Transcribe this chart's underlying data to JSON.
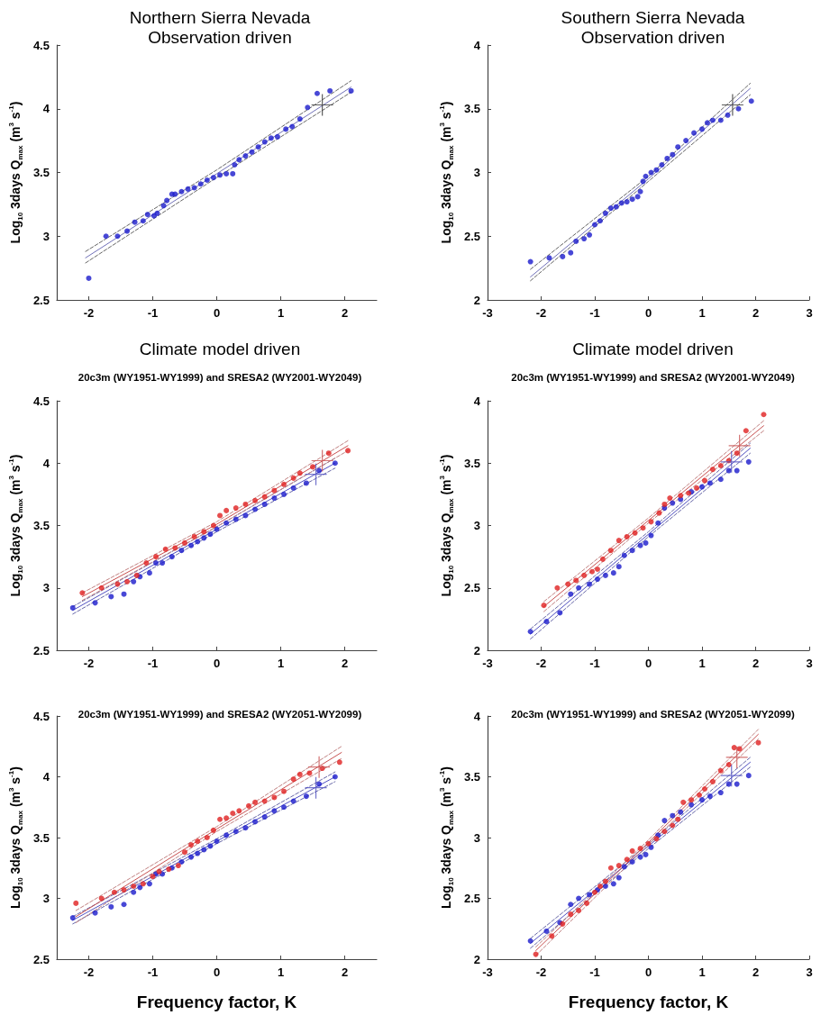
{
  "chart_data": [
    {
      "type": "scatter",
      "title": "Northern Sierra Nevada",
      "subtitle": "Observation driven",
      "ylabel": "Log$_{10}$ 3days Q$_{max}$ (m$^{3}$ s$^{-1}$)",
      "xlim": [
        -2.5,
        2.5
      ],
      "ylim": [
        2.5,
        4.5
      ],
      "xticks": [
        -2,
        -1,
        0,
        1,
        2
      ],
      "yticks": [
        2.5,
        3,
        3.5,
        4,
        4.5
      ],
      "series": [
        {
          "type": "line",
          "color": "#666666",
          "line_style": "dashed",
          "marker": "none",
          "x": [
            -2.05,
            0,
            2.1
          ],
          "values": [
            2.88,
            3.52,
            4.22
          ]
        },
        {
          "type": "line",
          "color": "#666666",
          "line_style": "dashed",
          "marker": "none",
          "x": [
            -2.05,
            0,
            2.1
          ],
          "values": [
            2.79,
            3.46,
            4.13
          ]
        },
        {
          "type": "line",
          "color": "#7070b8",
          "line_style": "solid",
          "marker": "none",
          "x": [
            -2.05,
            0,
            2.1
          ],
          "values": [
            2.83,
            3.49,
            4.17
          ]
        },
        {
          "color": "#1a1acc",
          "marker": "circle",
          "x": [
            -2,
            -1.73,
            -1.55,
            -1.4,
            -1.28,
            -1.15,
            -1.08,
            -0.98,
            -0.93,
            -0.83,
            -0.78,
            -0.7,
            -0.65,
            -0.55,
            -0.45,
            -0.35,
            -0.25,
            -0.15,
            -0.05,
            0.05,
            0.15,
            0.25,
            0.28,
            0.35,
            0.45,
            0.55,
            0.65,
            0.75,
            0.85,
            0.95,
            1.08,
            1.18,
            1.3,
            1.42,
            1.57,
            1.77,
            2.1
          ],
          "values": [
            2.67,
            3.0,
            3.0,
            3.04,
            3.11,
            3.12,
            3.17,
            3.16,
            3.18,
            3.24,
            3.28,
            3.33,
            3.33,
            3.35,
            3.37,
            3.38,
            3.41,
            3.44,
            3.46,
            3.48,
            3.49,
            3.49,
            3.56,
            3.6,
            3.63,
            3.66,
            3.7,
            3.74,
            3.77,
            3.78,
            3.84,
            3.86,
            3.92,
            4.01,
            4.12,
            4.14,
            4.14
          ]
        },
        {
          "color": "#333333",
          "marker": "cross",
          "x": [
            1.65
          ],
          "values": [
            4.03
          ]
        }
      ]
    },
    {
      "type": "scatter",
      "title": "Southern Sierra Nevada",
      "subtitle": "Observation driven",
      "ylabel": "Log$_{10}$ 3days Q$_{max}$ (m$^{3}$ s$^{-1}$)",
      "xlim": [
        -3,
        3
      ],
      "ylim": [
        2,
        4
      ],
      "xticks": [
        -3,
        -2,
        -1,
        0,
        1,
        2,
        3
      ],
      "yticks": [
        2,
        2.5,
        3,
        3.5,
        4
      ],
      "series": [
        {
          "type": "line",
          "color": "#666666",
          "line_style": "dashed",
          "marker": "none",
          "x": [
            -2.2,
            0,
            1.9
          ],
          "values": [
            2.24,
            2.97,
            3.7
          ]
        },
        {
          "type": "line",
          "color": "#666666",
          "line_style": "dashed",
          "marker": "none",
          "x": [
            -2.2,
            0,
            1.9
          ],
          "values": [
            2.15,
            2.93,
            3.61
          ]
        },
        {
          "type": "line",
          "color": "#7070b8",
          "line_style": "solid",
          "marker": "none",
          "x": [
            -2.2,
            0,
            1.9
          ],
          "values": [
            2.18,
            2.95,
            3.66
          ]
        },
        {
          "color": "#1a1acc",
          "marker": "circle",
          "x": [
            -2.2,
            -1.85,
            -1.6,
            -1.45,
            -1.35,
            -1.2,
            -1.1,
            -1.0,
            -0.9,
            -0.8,
            -0.7,
            -0.6,
            -0.5,
            -0.4,
            -0.3,
            -0.2,
            -0.15,
            -0.1,
            -0.05,
            0.05,
            0.15,
            0.25,
            0.35,
            0.45,
            0.55,
            0.7,
            0.85,
            1.0,
            1.1,
            1.2,
            1.35,
            1.48,
            1.68,
            1.92
          ],
          "values": [
            2.3,
            2.33,
            2.34,
            2.37,
            2.46,
            2.48,
            2.51,
            2.59,
            2.62,
            2.68,
            2.72,
            2.73,
            2.76,
            2.77,
            2.79,
            2.81,
            2.85,
            2.93,
            2.97,
            3.0,
            3.02,
            3.06,
            3.11,
            3.14,
            3.2,
            3.25,
            3.31,
            3.34,
            3.39,
            3.41,
            3.41,
            3.45,
            3.5,
            3.56
          ]
        },
        {
          "color": "#333333",
          "marker": "cross",
          "x": [
            1.57
          ],
          "values": [
            3.53
          ]
        }
      ]
    },
    {
      "type": "scatter",
      "title": "Climate model driven",
      "subtitle": "20c3m (WY1951-WY1999) and SRESA2 (WY2001-WY2049)",
      "ylabel": "Log$_{10}$ 3days Q$_{max}$ (m$^{3}$ s$^{-1}$)",
      "xlim": [
        -2.5,
        2.5
      ],
      "ylim": [
        2.5,
        4.5
      ],
      "xticks": [
        -2,
        -1,
        0,
        1,
        2
      ],
      "yticks": [
        2.5,
        3,
        3.5,
        4,
        4.5
      ],
      "series": [
        {
          "type": "line",
          "color": "#6868a8",
          "line_style": "dashed",
          "marker": "none",
          "x": [
            -2.25,
            0,
            1.85
          ],
          "values": [
            2.85,
            3.49,
            4.04
          ]
        },
        {
          "type": "line",
          "color": "#6868a8",
          "line_style": "dashed",
          "marker": "none",
          "x": [
            -2.25,
            0,
            1.85
          ],
          "values": [
            2.79,
            3.45,
            3.96
          ]
        },
        {
          "type": "line",
          "color": "#5050c0",
          "line_style": "solid",
          "marker": "none",
          "x": [
            -2.25,
            0,
            1.85
          ],
          "values": [
            2.82,
            3.47,
            4.0
          ]
        },
        {
          "color": "#1a1acc",
          "marker": "circle",
          "x": [
            -2.25,
            -1.9,
            -1.65,
            -1.45,
            -1.3,
            -1.2,
            -1.05,
            -0.95,
            -0.85,
            -0.7,
            -0.55,
            -0.4,
            -0.3,
            -0.2,
            -0.1,
            0.0,
            0.15,
            0.3,
            0.45,
            0.6,
            0.75,
            0.9,
            1.05,
            1.2,
            1.4,
            1.6,
            1.85
          ],
          "values": [
            2.84,
            2.88,
            2.93,
            2.95,
            3.05,
            3.09,
            3.12,
            3.2,
            3.2,
            3.25,
            3.3,
            3.34,
            3.37,
            3.4,
            3.43,
            3.47,
            3.52,
            3.55,
            3.58,
            3.63,
            3.67,
            3.72,
            3.75,
            3.8,
            3.84,
            3.94,
            4.0
          ]
        },
        {
          "color": "#5050c0",
          "marker": "cross",
          "x": [
            1.55
          ],
          "values": [
            3.91
          ]
        },
        {
          "type": "line",
          "color": "#c08080",
          "line_style": "dashed",
          "marker": "none",
          "x": [
            -2.1,
            0,
            2.05
          ],
          "values": [
            2.96,
            3.53,
            4.18
          ]
        },
        {
          "type": "line",
          "color": "#c08080",
          "line_style": "dashed",
          "marker": "none",
          "x": [
            -2.1,
            0,
            2.05
          ],
          "values": [
            2.9,
            3.49,
            4.1
          ]
        },
        {
          "type": "line",
          "color": "#c85050",
          "line_style": "solid",
          "marker": "none",
          "x": [
            -2.1,
            0,
            2.05
          ],
          "values": [
            2.93,
            3.51,
            4.14
          ]
        },
        {
          "color": "#e02020",
          "marker": "circle",
          "x": [
            -2.1,
            -1.8,
            -1.55,
            -1.4,
            -1.25,
            -1.1,
            -0.95,
            -0.8,
            -0.65,
            -0.5,
            -0.35,
            -0.2,
            -0.05,
            0.05,
            0.15,
            0.3,
            0.45,
            0.6,
            0.75,
            0.9,
            1.05,
            1.2,
            1.3,
            1.5,
            1.75,
            2.05
          ],
          "values": [
            2.96,
            3.0,
            3.03,
            3.05,
            3.1,
            3.2,
            3.25,
            3.31,
            3.32,
            3.36,
            3.41,
            3.45,
            3.5,
            3.58,
            3.62,
            3.64,
            3.67,
            3.7,
            3.73,
            3.78,
            3.83,
            3.88,
            3.92,
            3.97,
            4.08,
            4.1
          ]
        },
        {
          "color": "#c85050",
          "marker": "cross",
          "x": [
            1.65
          ],
          "values": [
            4.02
          ]
        }
      ]
    },
    {
      "type": "scatter",
      "title": "Climate model driven",
      "subtitle": "20c3m (WY1951-WY1999) and SRESA2 (WY2001-WY2049)",
      "ylabel": "Log$_{10}$ 3days Q$_{max}$ (m$^{3}$ s$^{-1}$)",
      "xlim": [
        -3,
        3
      ],
      "ylim": [
        2,
        4
      ],
      "xticks": [
        -3,
        -2,
        -1,
        0,
        1,
        2,
        3
      ],
      "yticks": [
        2,
        2.5,
        3,
        3.5,
        4
      ],
      "series": [
        {
          "type": "line",
          "color": "#6868a8",
          "line_style": "dashed",
          "marker": "none",
          "x": [
            -2.2,
            0,
            1.9
          ],
          "values": [
            2.17,
            2.95,
            3.66
          ]
        },
        {
          "type": "line",
          "color": "#6868a8",
          "line_style": "dashed",
          "marker": "none",
          "x": [
            -2.2,
            0,
            1.9
          ],
          "values": [
            2.09,
            2.91,
            3.58
          ]
        },
        {
          "type": "line",
          "color": "#5050c0",
          "line_style": "solid",
          "marker": "none",
          "x": [
            -2.2,
            0,
            1.9
          ],
          "values": [
            2.13,
            2.93,
            3.62
          ]
        },
        {
          "color": "#1a1acc",
          "marker": "circle",
          "x": [
            -2.2,
            -1.9,
            -1.65,
            -1.45,
            -1.3,
            -1.1,
            -0.95,
            -0.8,
            -0.65,
            -0.55,
            -0.45,
            -0.3,
            -0.15,
            -0.05,
            0.05,
            0.18,
            0.3,
            0.45,
            0.6,
            0.8,
            1.0,
            1.15,
            1.35,
            1.5,
            1.65,
            1.87
          ],
          "values": [
            2.15,
            2.23,
            2.3,
            2.45,
            2.5,
            2.53,
            2.57,
            2.6,
            2.62,
            2.67,
            2.76,
            2.8,
            2.84,
            2.86,
            2.92,
            3.02,
            3.14,
            3.18,
            3.21,
            3.27,
            3.31,
            3.34,
            3.37,
            3.44,
            3.44,
            3.51
          ]
        },
        {
          "color": "#5050c0",
          "marker": "cross",
          "x": [
            1.55
          ],
          "values": [
            3.51
          ]
        },
        {
          "type": "line",
          "color": "#c08080",
          "line_style": "dashed",
          "marker": "none",
          "x": [
            -1.95,
            0,
            2.15
          ],
          "values": [
            2.39,
            3.06,
            3.84
          ]
        },
        {
          "type": "line",
          "color": "#c08080",
          "line_style": "dashed",
          "marker": "none",
          "x": [
            -1.95,
            0,
            2.15
          ],
          "values": [
            2.31,
            3.02,
            3.76
          ]
        },
        {
          "type": "line",
          "color": "#c85050",
          "line_style": "solid",
          "marker": "none",
          "x": [
            -1.95,
            0,
            2.15
          ],
          "values": [
            2.35,
            3.04,
            3.8
          ]
        },
        {
          "color": "#e02020",
          "marker": "circle",
          "x": [
            -1.95,
            -1.7,
            -1.5,
            -1.35,
            -1.2,
            -1.05,
            -0.95,
            -0.85,
            -0.7,
            -0.55,
            -0.4,
            -0.25,
            -0.1,
            0.05,
            0.2,
            0.3,
            0.4,
            0.6,
            0.75,
            0.9,
            1.05,
            1.2,
            1.35,
            1.5,
            1.65,
            1.82,
            2.15
          ],
          "values": [
            2.36,
            2.5,
            2.53,
            2.56,
            2.6,
            2.63,
            2.65,
            2.73,
            2.8,
            2.88,
            2.91,
            2.94,
            2.98,
            3.03,
            3.1,
            3.17,
            3.22,
            3.24,
            3.26,
            3.3,
            3.36,
            3.45,
            3.48,
            3.52,
            3.58,
            3.76,
            3.89
          ]
        },
        {
          "color": "#c85050",
          "marker": "cross",
          "x": [
            1.7
          ],
          "values": [
            3.64
          ]
        }
      ]
    },
    {
      "type": "scatter",
      "title": "20c3m (WY1951-WY1999) and SRESA2 (WY2051-WY2099)",
      "xlabel": "Frequency factor, K",
      "ylabel": "Log$_{10}$ 3days Q$_{max}$ (m$^{3}$ s$^{-1}$)",
      "xlim": [
        -2.5,
        2.5
      ],
      "ylim": [
        2.5,
        4.5
      ],
      "xticks": [
        -2,
        -1,
        0,
        1,
        2
      ],
      "yticks": [
        2.5,
        3,
        3.5,
        4,
        4.5
      ],
      "series": [
        {
          "type": "line",
          "color": "#6868a8",
          "line_style": "dashed",
          "marker": "none",
          "x": [
            -2.25,
            0,
            1.85
          ],
          "values": [
            2.85,
            3.49,
            4.04
          ]
        },
        {
          "type": "line",
          "color": "#6868a8",
          "line_style": "dashed",
          "marker": "none",
          "x": [
            -2.25,
            0,
            1.85
          ],
          "values": [
            2.79,
            3.45,
            3.96
          ]
        },
        {
          "type": "line",
          "color": "#5050c0",
          "line_style": "solid",
          "marker": "none",
          "x": [
            -2.25,
            0,
            1.85
          ],
          "values": [
            2.82,
            3.47,
            4.0
          ]
        },
        {
          "color": "#1a1acc",
          "marker": "circle",
          "x": [
            -2.25,
            -1.9,
            -1.65,
            -1.45,
            -1.3,
            -1.2,
            -1.05,
            -0.95,
            -0.85,
            -0.7,
            -0.55,
            -0.4,
            -0.3,
            -0.2,
            -0.1,
            0.0,
            0.15,
            0.3,
            0.45,
            0.6,
            0.75,
            0.9,
            1.05,
            1.2,
            1.4,
            1.6,
            1.85
          ],
          "values": [
            2.84,
            2.88,
            2.93,
            2.95,
            3.05,
            3.09,
            3.12,
            3.2,
            3.2,
            3.25,
            3.3,
            3.34,
            3.37,
            3.4,
            3.43,
            3.47,
            3.52,
            3.55,
            3.58,
            3.63,
            3.67,
            3.72,
            3.75,
            3.8,
            3.84,
            3.94,
            4.0
          ]
        },
        {
          "color": "#5050c0",
          "marker": "cross",
          "x": [
            1.55
          ],
          "values": [
            3.91
          ]
        },
        {
          "type": "line",
          "color": "#c08080",
          "line_style": "dashed",
          "marker": "none",
          "x": [
            -2.2,
            0,
            1.95
          ],
          "values": [
            2.9,
            3.59,
            4.25
          ]
        },
        {
          "type": "line",
          "color": "#c08080",
          "line_style": "dashed",
          "marker": "none",
          "x": [
            -2.2,
            0,
            1.95
          ],
          "values": [
            2.8,
            3.55,
            4.15
          ]
        },
        {
          "type": "line",
          "color": "#c85050",
          "line_style": "solid",
          "marker": "none",
          "x": [
            -2.2,
            0,
            1.95
          ],
          "values": [
            2.85,
            3.57,
            4.2
          ]
        },
        {
          "color": "#e02020",
          "marker": "circle",
          "x": [
            -2.2,
            -1.8,
            -1.6,
            -1.45,
            -1.3,
            -1.15,
            -1.0,
            -0.9,
            -0.75,
            -0.6,
            -0.5,
            -0.4,
            -0.3,
            -0.15,
            -0.05,
            0.05,
            0.15,
            0.25,
            0.35,
            0.5,
            0.6,
            0.75,
            0.9,
            1.05,
            1.2,
            1.3,
            1.45,
            1.65,
            1.92
          ],
          "values": [
            2.96,
            3.0,
            3.05,
            3.07,
            3.1,
            3.12,
            3.18,
            3.22,
            3.24,
            3.27,
            3.38,
            3.44,
            3.47,
            3.5,
            3.56,
            3.65,
            3.66,
            3.7,
            3.72,
            3.76,
            3.79,
            3.8,
            3.83,
            3.88,
            3.98,
            4.02,
            4.03,
            4.07,
            4.12
          ]
        },
        {
          "color": "#c85050",
          "marker": "cross",
          "x": [
            1.6
          ],
          "values": [
            4.08
          ]
        }
      ]
    },
    {
      "type": "scatter",
      "title": "20c3m (WY1951-WY1999) and SRESA2 (WY2051-WY2099)",
      "xlabel": "Frequency factor, K",
      "ylabel": "Log$_{10}$ 3days Q$_{max}$ (m$^{3}$ s$^{-1}$)",
      "xlim": [
        -3,
        3
      ],
      "ylim": [
        2,
        4
      ],
      "xticks": [
        -3,
        -2,
        -1,
        0,
        1,
        2,
        3
      ],
      "yticks": [
        2,
        2.5,
        3,
        3.5,
        4
      ],
      "series": [
        {
          "type": "line",
          "color": "#6868a8",
          "line_style": "dashed",
          "marker": "none",
          "x": [
            -2.2,
            0,
            1.9
          ],
          "values": [
            2.17,
            2.95,
            3.66
          ]
        },
        {
          "type": "line",
          "color": "#6868a8",
          "line_style": "dashed",
          "marker": "none",
          "x": [
            -2.2,
            0,
            1.9
          ],
          "values": [
            2.09,
            2.91,
            3.58
          ]
        },
        {
          "type": "line",
          "color": "#5050c0",
          "line_style": "solid",
          "marker": "none",
          "x": [
            -2.2,
            0,
            1.9
          ],
          "values": [
            2.13,
            2.93,
            3.62
          ]
        },
        {
          "color": "#1a1acc",
          "marker": "circle",
          "x": [
            -2.2,
            -1.9,
            -1.65,
            -1.45,
            -1.3,
            -1.1,
            -0.95,
            -0.8,
            -0.65,
            -0.55,
            -0.45,
            -0.3,
            -0.15,
            -0.05,
            0.05,
            0.18,
            0.3,
            0.45,
            0.6,
            0.8,
            1.0,
            1.15,
            1.35,
            1.5,
            1.65,
            1.87
          ],
          "values": [
            2.15,
            2.23,
            2.3,
            2.45,
            2.5,
            2.53,
            2.57,
            2.6,
            2.62,
            2.67,
            2.76,
            2.8,
            2.84,
            2.86,
            2.92,
            3.02,
            3.14,
            3.18,
            3.21,
            3.27,
            3.31,
            3.34,
            3.37,
            3.44,
            3.44,
            3.51
          ]
        },
        {
          "color": "#5050c0",
          "marker": "cross",
          "x": [
            1.55
          ],
          "values": [
            3.51
          ]
        },
        {
          "type": "line",
          "color": "#c08080",
          "line_style": "dashed",
          "marker": "none",
          "x": [
            -2.1,
            0,
            2.05
          ],
          "values": [
            2.1,
            2.98,
            3.89
          ]
        },
        {
          "type": "line",
          "color": "#c08080",
          "line_style": "dashed",
          "marker": "none",
          "x": [
            -2.1,
            0,
            2.05
          ],
          "values": [
            2.03,
            2.94,
            3.81
          ]
        },
        {
          "type": "line",
          "color": "#c85050",
          "line_style": "solid",
          "marker": "none",
          "x": [
            -2.1,
            0,
            2.05
          ],
          "values": [
            2.07,
            2.96,
            3.85
          ]
        },
        {
          "color": "#e02020",
          "marker": "circle",
          "x": [
            -2.1,
            -1.8,
            -1.6,
            -1.45,
            -1.3,
            -1.15,
            -1.0,
            -0.9,
            -0.8,
            -0.7,
            -0.55,
            -0.4,
            -0.3,
            -0.15,
            0.0,
            0.15,
            0.3,
            0.45,
            0.55,
            0.65,
            0.8,
            0.95,
            1.05,
            1.2,
            1.35,
            1.5,
            1.6,
            1.7,
            2.05
          ],
          "values": [
            2.04,
            2.19,
            2.29,
            2.37,
            2.4,
            2.46,
            2.55,
            2.6,
            2.64,
            2.75,
            2.77,
            2.82,
            2.89,
            2.91,
            2.95,
            2.99,
            3.05,
            3.1,
            3.15,
            3.29,
            3.31,
            3.35,
            3.4,
            3.46,
            3.55,
            3.6,
            3.74,
            3.73,
            3.78
          ]
        },
        {
          "color": "#c85050",
          "marker": "cross",
          "x": [
            1.65
          ],
          "values": [
            3.66
          ]
        }
      ]
    }
  ]
}
